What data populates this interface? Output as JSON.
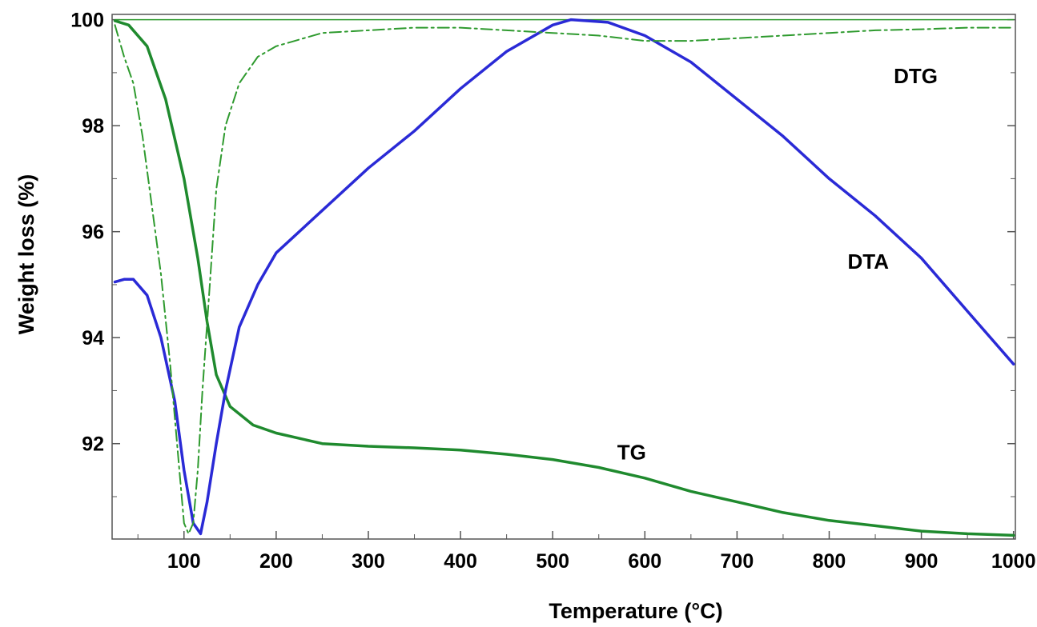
{
  "chart_data": {
    "type": "line",
    "title": "",
    "xlabel": "Temperature (°C)",
    "ylabel": "Weight loss (%)",
    "xlim": [
      22,
      1002
    ],
    "ylim": [
      90.2,
      100.1
    ],
    "x_ticks": [
      100,
      200,
      300,
      400,
      500,
      600,
      700,
      800,
      900,
      1000
    ],
    "y_ticks": [
      92,
      94,
      96,
      98,
      100
    ],
    "grid": false,
    "legend": "none",
    "colors": {
      "tg": "#1f8a2e",
      "dta": "#2a2ad6",
      "dtg": "#2e9a2e",
      "axis": "#555555"
    },
    "series": [
      {
        "name": "TG",
        "style": "solid",
        "points": [
          [
            25,
            99.98
          ],
          [
            40,
            99.9
          ],
          [
            60,
            99.5
          ],
          [
            80,
            98.5
          ],
          [
            100,
            97.0
          ],
          [
            115,
            95.5
          ],
          [
            125,
            94.3
          ],
          [
            135,
            93.3
          ],
          [
            150,
            92.7
          ],
          [
            175,
            92.35
          ],
          [
            200,
            92.2
          ],
          [
            250,
            92.0
          ],
          [
            300,
            91.95
          ],
          [
            350,
            91.92
          ],
          [
            400,
            91.88
          ],
          [
            450,
            91.8
          ],
          [
            500,
            91.7
          ],
          [
            550,
            91.55
          ],
          [
            600,
            91.35
          ],
          [
            650,
            91.1
          ],
          [
            700,
            90.9
          ],
          [
            750,
            90.7
          ],
          [
            800,
            90.55
          ],
          [
            850,
            90.45
          ],
          [
            900,
            90.35
          ],
          [
            950,
            90.3
          ],
          [
            1000,
            90.27
          ]
        ]
      },
      {
        "name": "DTA",
        "style": "solid",
        "points": [
          [
            25,
            95.05
          ],
          [
            35,
            95.1
          ],
          [
            45,
            95.1
          ],
          [
            60,
            94.8
          ],
          [
            75,
            94.0
          ],
          [
            90,
            92.8
          ],
          [
            100,
            91.5
          ],
          [
            110,
            90.5
          ],
          [
            118,
            90.3
          ],
          [
            125,
            90.9
          ],
          [
            135,
            92.0
          ],
          [
            145,
            93.0
          ],
          [
            160,
            94.2
          ],
          [
            180,
            95.0
          ],
          [
            200,
            95.6
          ],
          [
            250,
            96.4
          ],
          [
            300,
            97.2
          ],
          [
            350,
            97.9
          ],
          [
            400,
            98.7
          ],
          [
            450,
            99.4
          ],
          [
            500,
            99.9
          ],
          [
            520,
            100.0
          ],
          [
            560,
            99.95
          ],
          [
            600,
            99.7
          ],
          [
            650,
            99.2
          ],
          [
            700,
            98.5
          ],
          [
            750,
            97.8
          ],
          [
            800,
            97.0
          ],
          [
            850,
            96.3
          ],
          [
            900,
            95.5
          ],
          [
            950,
            94.5
          ],
          [
            1000,
            93.5
          ]
        ]
      },
      {
        "name": "DTG",
        "style": "dash-dot",
        "points": [
          [
            25,
            99.9
          ],
          [
            35,
            99.3
          ],
          [
            45,
            98.8
          ],
          [
            55,
            97.8
          ],
          [
            65,
            96.5
          ],
          [
            75,
            95.2
          ],
          [
            85,
            93.5
          ],
          [
            95,
            91.5
          ],
          [
            100,
            90.5
          ],
          [
            105,
            90.3
          ],
          [
            110,
            90.5
          ],
          [
            115,
            91.5
          ],
          [
            120,
            93.0
          ],
          [
            128,
            95.0
          ],
          [
            135,
            96.8
          ],
          [
            145,
            98.0
          ],
          [
            160,
            98.8
          ],
          [
            180,
            99.3
          ],
          [
            200,
            99.5
          ],
          [
            250,
            99.75
          ],
          [
            300,
            99.8
          ],
          [
            350,
            99.85
          ],
          [
            400,
            99.85
          ],
          [
            450,
            99.8
          ],
          [
            500,
            99.75
          ],
          [
            550,
            99.7
          ],
          [
            600,
            99.6
          ],
          [
            650,
            99.6
          ],
          [
            700,
            99.65
          ],
          [
            750,
            99.7
          ],
          [
            800,
            99.75
          ],
          [
            850,
            99.8
          ],
          [
            900,
            99.82
          ],
          [
            950,
            99.85
          ],
          [
            1000,
            99.85
          ]
        ]
      }
    ],
    "reference_line": {
      "y": 100
    },
    "annotations": [
      {
        "text": "DTG",
        "x": 870,
        "y": 98.8
      },
      {
        "text": "DTA",
        "x": 820,
        "y": 95.3
      },
      {
        "text": "TG",
        "x": 570,
        "y": 91.7
      }
    ]
  }
}
